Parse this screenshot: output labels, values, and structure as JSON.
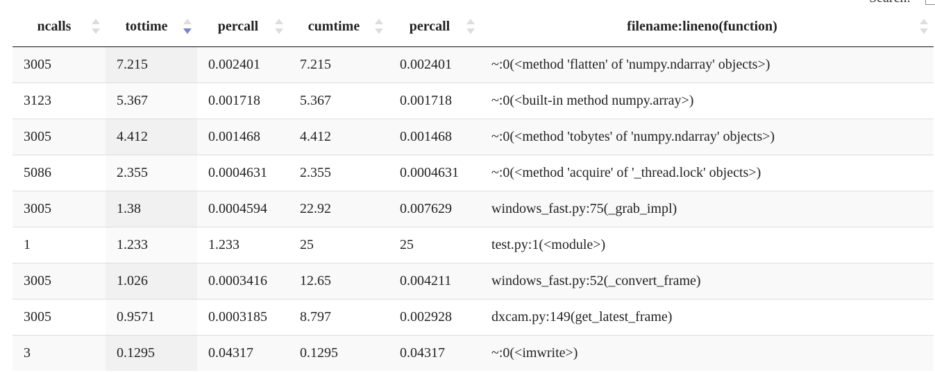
{
  "search_label": "Search:",
  "table": {
    "columns": [
      "ncalls",
      "tottime",
      "percall",
      "cumtime",
      "percall",
      "filename:lineno(function)"
    ],
    "sort": {
      "column": 1,
      "direction": "desc"
    },
    "rows": [
      [
        "3005",
        "7.215",
        "0.002401",
        "7.215",
        "0.002401",
        "~:0(<method 'flatten' of 'numpy.ndarray' objects>)"
      ],
      [
        "3123",
        "5.367",
        "0.001718",
        "5.367",
        "0.001718",
        "~:0(<built-in method numpy.array>)"
      ],
      [
        "3005",
        "4.412",
        "0.001468",
        "4.412",
        "0.001468",
        "~:0(<method 'tobytes' of 'numpy.ndarray' objects>)"
      ],
      [
        "5086",
        "2.355",
        "0.0004631",
        "2.355",
        "0.0004631",
        "~:0(<method 'acquire' of '_thread.lock' objects>)"
      ],
      [
        "3005",
        "1.38",
        "0.0004594",
        "22.92",
        "0.007629",
        "windows_fast.py:75(_grab_impl)"
      ],
      [
        "1",
        "1.233",
        "1.233",
        "25",
        "25",
        "test.py:1(<module>)"
      ],
      [
        "3005",
        "1.026",
        "0.0003416",
        "12.65",
        "0.004211",
        "windows_fast.py:52(_convert_frame)"
      ],
      [
        "3005",
        "0.9571",
        "0.0003185",
        "8.797",
        "0.002928",
        "dxcam.py:149(get_latest_frame)"
      ],
      [
        "3",
        "0.1295",
        "0.04317",
        "0.1295",
        "0.04317",
        "~:0(<imwrite>)"
      ]
    ]
  }
}
